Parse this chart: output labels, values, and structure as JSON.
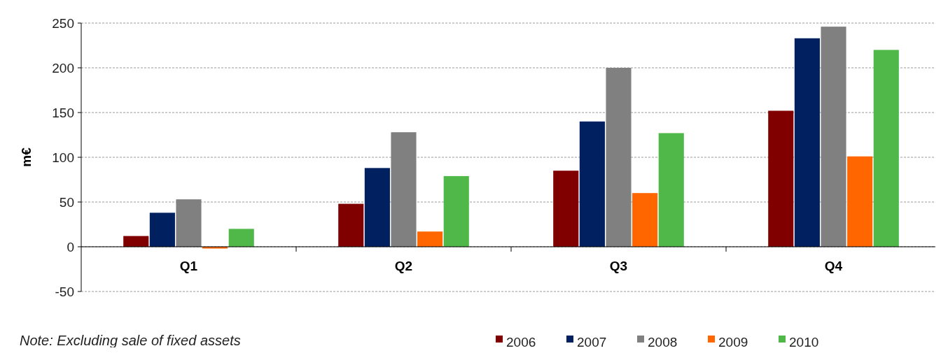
{
  "chart_data": {
    "type": "bar",
    "ylabel": "m€",
    "categories": [
      "Q1",
      "Q2",
      "Q3",
      "Q4"
    ],
    "series": [
      {
        "name": "2006",
        "color": "#800000",
        "values": [
          12,
          48,
          85,
          152
        ]
      },
      {
        "name": "2007",
        "color": "#002060",
        "values": [
          38,
          88,
          140,
          233
        ]
      },
      {
        "name": "2008",
        "color": "#808080",
        "values": [
          53,
          128,
          200,
          246
        ]
      },
      {
        "name": "2009",
        "color": "#ff6600",
        "values": [
          -2,
          17,
          60,
          101
        ]
      },
      {
        "name": "2010",
        "color": "#50b848",
        "values": [
          20,
          79,
          127,
          220
        ]
      }
    ],
    "ylim": [
      -50,
      250
    ],
    "yticks": [
      -50,
      0,
      50,
      100,
      150,
      200,
      250
    ],
    "grid": "y",
    "legend": "bottom",
    "annotations": [
      "Note: Excluding sale of fixed assets"
    ]
  }
}
